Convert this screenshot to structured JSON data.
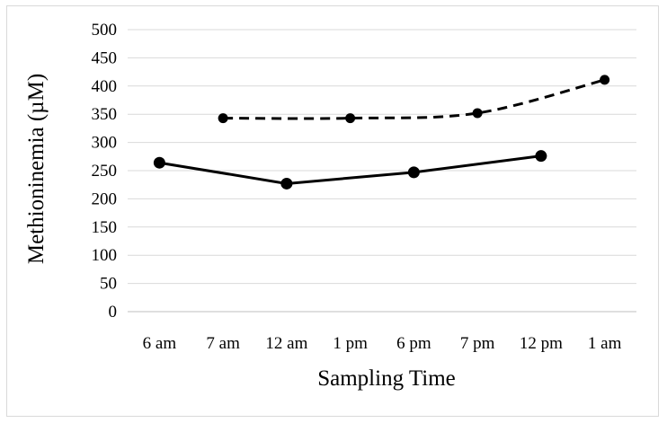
{
  "chart_data": {
    "type": "line",
    "title": "",
    "xlabel": "Sampling Time",
    "ylabel": "Methioninemia (µM)",
    "categories": [
      "6 am",
      "7 am",
      "12 am",
      "1 pm",
      "6 pm",
      "7 pm",
      "12 pm",
      "1 am"
    ],
    "ylim": [
      0,
      500
    ],
    "yticks": [
      0,
      50,
      100,
      150,
      200,
      250,
      300,
      350,
      400,
      450,
      500
    ],
    "grid": true,
    "legend": "none",
    "series": [
      {
        "line_style": "solid",
        "marker": "circle",
        "color": "#000000",
        "values": [
          264,
          null,
          227,
          null,
          247,
          null,
          276,
          null
        ]
      },
      {
        "line_style": "dashed",
        "marker": "circle",
        "color": "#000000",
        "values": [
          null,
          343,
          null,
          343,
          null,
          352,
          null,
          411
        ]
      }
    ]
  }
}
